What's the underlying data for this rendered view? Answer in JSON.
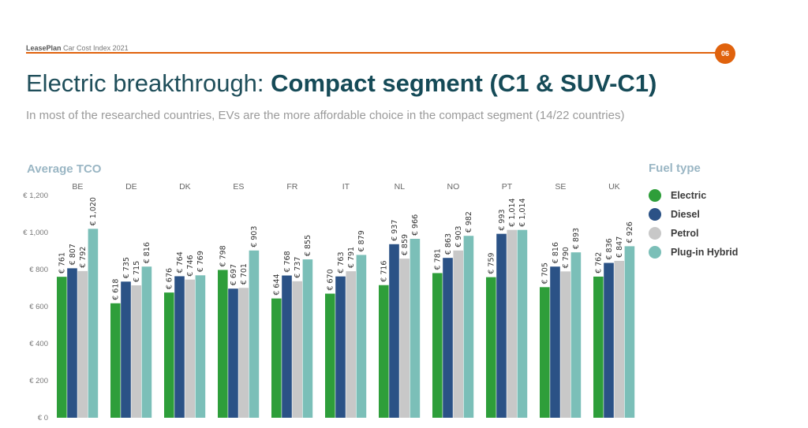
{
  "header": {
    "brand": "LeasePlan",
    "report": "Car Cost Index 2021",
    "page_number": "06"
  },
  "title": {
    "regular": "Electric breakthrough: ",
    "bold": "Compact segment (C1 & SUV-C1)"
  },
  "subtitle": "In most of the researched countries, EVs are the more affordable choice in the compact segment (14/22 countries)",
  "colors": {
    "accent": "#e0620d",
    "electric": "#2e9e3a",
    "diesel": "#2b5286",
    "petrol": "#c8c8c8",
    "plugin_hybrid": "#7bbfb8"
  },
  "chart_data": {
    "type": "bar",
    "title": "Average TCO",
    "xlabel": "",
    "ylabel": "",
    "ylim": [
      0,
      1200
    ],
    "yticks": [
      0,
      200,
      400,
      600,
      800,
      1000,
      1200
    ],
    "ytick_labels": [
      "€ 0",
      "€ 200",
      "€ 400",
      "€ 600",
      "€ 800",
      "€ 1,000",
      "€ 1,200"
    ],
    "grid": false,
    "legend_title": "Fuel type",
    "legend_position": "right",
    "categories": [
      "BE",
      "DE",
      "DK",
      "ES",
      "FR",
      "IT",
      "NL",
      "NO",
      "PT",
      "SE",
      "UK"
    ],
    "series": [
      {
        "name": "Electric",
        "color": "#2e9e3a",
        "values": [
          761,
          618,
          676,
          798,
          644,
          670,
          716,
          781,
          759,
          705,
          762
        ],
        "labels": [
          "€ 761",
          "€ 618",
          "€ 676",
          "€ 798",
          "€ 644",
          "€ 670",
          "€ 716",
          "€ 781",
          "€ 759",
          "€ 705",
          "€ 762"
        ]
      },
      {
        "name": "Diesel",
        "color": "#2b5286",
        "values": [
          807,
          735,
          764,
          697,
          768,
          763,
          937,
          863,
          993,
          816,
          836
        ],
        "labels": [
          "€ 807",
          "€ 735",
          "€ 764",
          "€ 697",
          "€ 768",
          "€ 763",
          "€ 937",
          "€ 863",
          "€ 993",
          "€ 816",
          "€ 836"
        ]
      },
      {
        "name": "Petrol",
        "color": "#c8c8c8",
        "values": [
          792,
          715,
          746,
          701,
          737,
          791,
          859,
          903,
          1014,
          790,
          847
        ],
        "labels": [
          "€ 792",
          "€ 715",
          "€ 746",
          "€ 701",
          "€ 737",
          "€ 791",
          "€ 859",
          "€ 903",
          "€ 1,014",
          "€ 790",
          "€ 847"
        ]
      },
      {
        "name": "Plug-in Hybrid",
        "color": "#7bbfb8",
        "values": [
          1020,
          816,
          769,
          903,
          855,
          879,
          966,
          982,
          1014,
          893,
          926
        ],
        "labels": [
          "€ 1,020",
          "€ 816",
          "€ 769",
          "€ 903",
          "€ 855",
          "€ 879",
          "€ 966",
          "€ 982",
          "€ 1,014",
          "€ 893",
          "€ 926"
        ]
      }
    ]
  }
}
